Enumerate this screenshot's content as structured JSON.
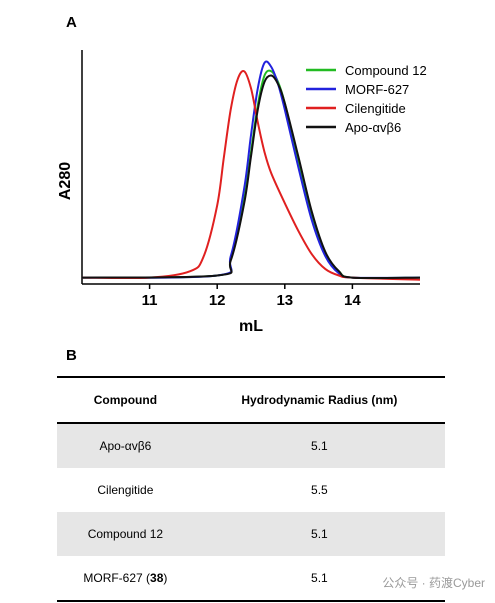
{
  "panels": {
    "a": "A",
    "b": "B"
  },
  "chart_data": {
    "type": "line",
    "xlabel": "mL",
    "ylabel": "A280",
    "xlim": [
      10.0,
      15.0
    ],
    "ylim": [
      0,
      1.1
    ],
    "xticks": [
      "11",
      "12",
      "13",
      "14"
    ],
    "xtick_values": [
      11,
      12,
      13,
      14
    ],
    "legend_position": "top-right",
    "series": [
      {
        "name": "Compound 12",
        "color": "#22bb22",
        "x": [
          10.0,
          12.0,
          12.2,
          12.4,
          12.5,
          12.6,
          12.7,
          12.8,
          12.9,
          13.0,
          13.2,
          13.4,
          13.6,
          13.8,
          14.0,
          15.0
        ],
        "y": [
          0.03,
          0.04,
          0.12,
          0.4,
          0.62,
          0.84,
          0.98,
          1.0,
          0.95,
          0.85,
          0.58,
          0.32,
          0.14,
          0.06,
          0.03,
          0.03
        ]
      },
      {
        "name": "MORF-627",
        "color": "#2222dd",
        "x": [
          10.0,
          12.0,
          12.2,
          12.4,
          12.5,
          12.6,
          12.7,
          12.8,
          12.9,
          13.0,
          13.2,
          13.4,
          13.6,
          13.8,
          14.0,
          15.0
        ],
        "y": [
          0.03,
          0.04,
          0.13,
          0.45,
          0.7,
          0.92,
          1.04,
          1.02,
          0.94,
          0.82,
          0.55,
          0.3,
          0.13,
          0.05,
          0.03,
          0.03
        ]
      },
      {
        "name": "Cilengitide",
        "color": "#e02020",
        "x": [
          10.0,
          11.0,
          11.6,
          11.8,
          12.0,
          12.1,
          12.2,
          12.3,
          12.4,
          12.5,
          12.6,
          12.7,
          12.8,
          13.0,
          13.2,
          13.4,
          13.6,
          13.8,
          14.0,
          15.0
        ],
        "y": [
          0.03,
          0.03,
          0.06,
          0.13,
          0.37,
          0.6,
          0.82,
          0.96,
          1.0,
          0.92,
          0.76,
          0.62,
          0.52,
          0.38,
          0.25,
          0.14,
          0.07,
          0.04,
          0.03,
          0.02
        ]
      },
      {
        "name": "Apo-αvβ6",
        "color": "#111111",
        "x": [
          10.0,
          12.0,
          12.2,
          12.4,
          12.5,
          12.6,
          12.7,
          12.8,
          12.9,
          13.0,
          13.2,
          13.4,
          13.6,
          13.8,
          14.0,
          15.0
        ],
        "y": [
          0.03,
          0.04,
          0.11,
          0.38,
          0.6,
          0.82,
          0.95,
          0.98,
          0.94,
          0.85,
          0.6,
          0.34,
          0.15,
          0.06,
          0.03,
          0.03
        ]
      }
    ]
  },
  "table": {
    "headers": [
      "Compound",
      "Hydrodynamic Radius (nm)"
    ],
    "rows": [
      {
        "compound": "Apo-αvβ6",
        "radius": "5.1"
      },
      {
        "compound": "Cilengitide",
        "radius": "5.5"
      },
      {
        "compound": "Compound 12",
        "radius": "5.1"
      },
      {
        "compound": "MORF-627 (",
        "compound_bold": "38",
        "compound_suffix": ")",
        "radius": "5.1"
      }
    ]
  },
  "watermark": "公众号 · 药渡Cyber"
}
